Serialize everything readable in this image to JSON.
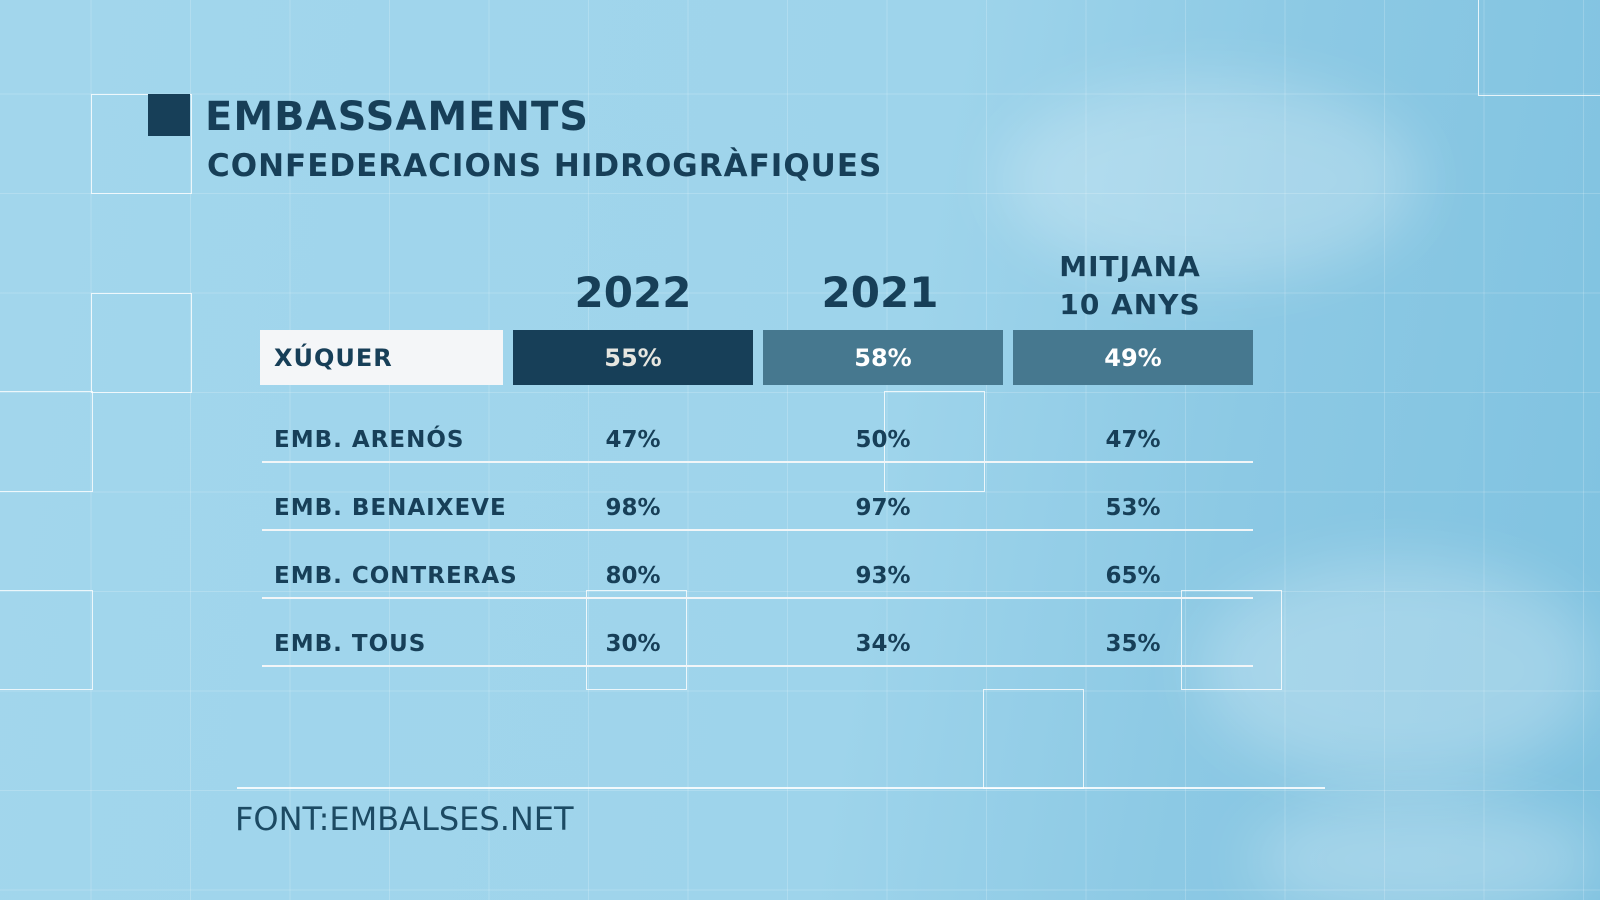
{
  "header": {
    "title": "EMBASSAMENTS",
    "subtitle": "CONFEDERACIONS HIDROGRÀFIQUES"
  },
  "colors": {
    "dark": "#173f58",
    "mid": "#46788f",
    "background": "#9fd4ea",
    "label_cell": "#f4f6f8"
  },
  "chart_data": {
    "type": "table",
    "columns": [
      "2022",
      "2021",
      "MITJANA 10 ANYS"
    ],
    "column_labels": {
      "c0": "2022",
      "c1": "2021",
      "c2a": "MITJANA",
      "c2b": "10 ANYS"
    },
    "highlight": {
      "label": "XÚQUER",
      "values": [
        "55%",
        "58%",
        "49%"
      ]
    },
    "rows": [
      {
        "label": "EMB. ARENÓS",
        "values": [
          "47%",
          "50%",
          "47%"
        ]
      },
      {
        "label": "EMB. BENAIXEVE",
        "values": [
          "98%",
          "97%",
          "53%"
        ]
      },
      {
        "label": "EMB. CONTRERAS",
        "values": [
          "80%",
          "93%",
          "65%"
        ]
      },
      {
        "label": "EMB. TOUS",
        "values": [
          "30%",
          "34%",
          "35%"
        ]
      }
    ]
  },
  "source": "FONT:EMBALSES.NET"
}
